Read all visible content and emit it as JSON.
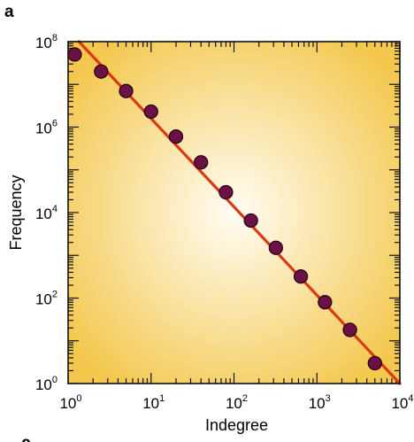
{
  "panel_label": "a",
  "next_panel_label": "c",
  "chart_data": {
    "type": "scatter",
    "xlabel": "Indegree",
    "ylabel": "Frequency",
    "xscale": "log",
    "yscale": "log",
    "xlim": [
      1,
      10000
    ],
    "ylim": [
      1,
      100000000
    ],
    "x_ticks": [
      {
        "value": 1,
        "base": "10",
        "exp": "0"
      },
      {
        "value": 10,
        "base": "10",
        "exp": "1"
      },
      {
        "value": 100,
        "base": "10",
        "exp": "2"
      },
      {
        "value": 1000,
        "base": "10",
        "exp": "3"
      },
      {
        "value": 10000,
        "base": "10",
        "exp": "4"
      }
    ],
    "y_ticks": [
      {
        "value": 1,
        "base": "10",
        "exp": "0"
      },
      {
        "value": 100,
        "base": "10",
        "exp": "2"
      },
      {
        "value": 10000,
        "base": "10",
        "exp": "4"
      },
      {
        "value": 1000000,
        "base": "10",
        "exp": "6"
      },
      {
        "value": 100000000,
        "base": "10",
        "exp": "8"
      }
    ],
    "points": [
      {
        "x": 1.2,
        "y": 50000000
      },
      {
        "x": 2.5,
        "y": 20000000
      },
      {
        "x": 5,
        "y": 7000000
      },
      {
        "x": 10,
        "y": 2300000
      },
      {
        "x": 20,
        "y": 600000
      },
      {
        "x": 40,
        "y": 150000
      },
      {
        "x": 80,
        "y": 30000
      },
      {
        "x": 160,
        "y": 6500
      },
      {
        "x": 320,
        "y": 1500
      },
      {
        "x": 640,
        "y": 320
      },
      {
        "x": 1250,
        "y": 80
      },
      {
        "x": 2500,
        "y": 18
      },
      {
        "x": 5000,
        "y": 3
      }
    ],
    "fit_line": {
      "x": [
        1.35,
        10000
      ],
      "y": [
        100000000,
        1
      ]
    },
    "grid": false,
    "colors": {
      "background_outer": "#f4c84e",
      "background_inner": "#fffdf4",
      "fit_line": "#d93a12",
      "marker_fill": "#6b1145",
      "marker_edge": "#2a0016",
      "axes": "#111111"
    }
  }
}
